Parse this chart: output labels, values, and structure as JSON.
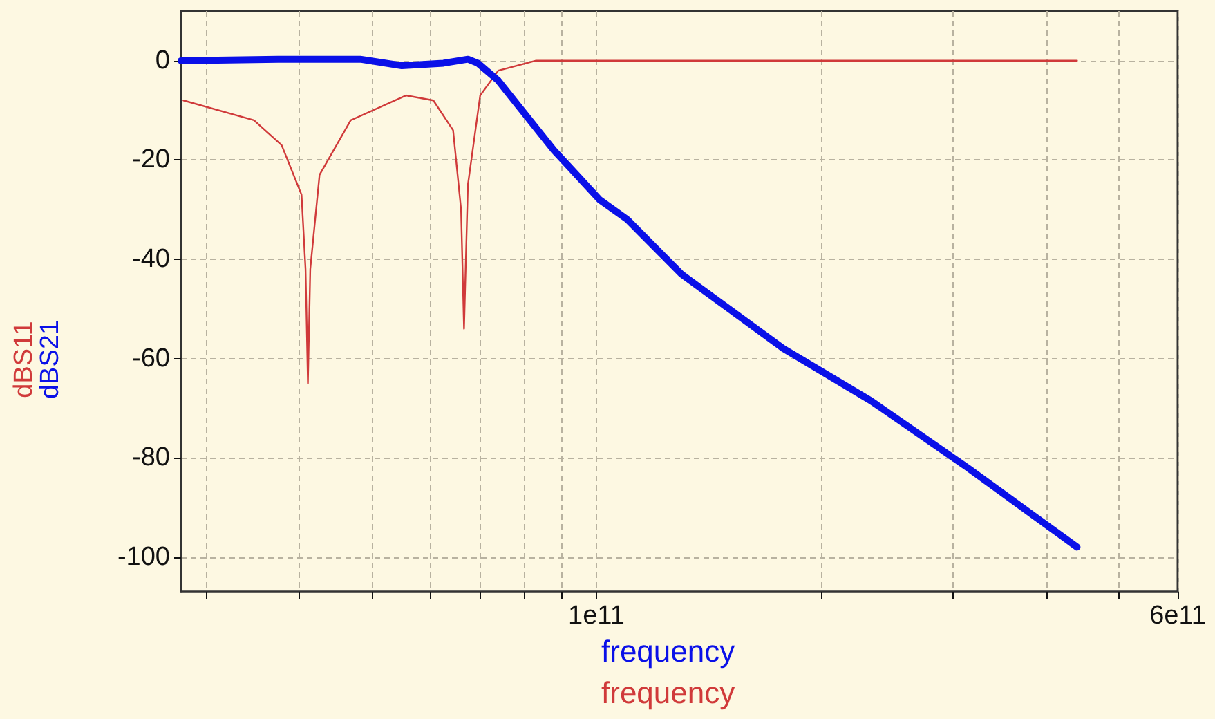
{
  "chart_data": {
    "type": "line",
    "xlabel": "frequency",
    "log": "x",
    "grid": true,
    "marker": "none",
    "line_style": "solid",
    "xlim": [
      27800000000.0,
      600000000000.0
    ],
    "xticks": [
      {
        "value": 30000000000.0,
        "label": null
      },
      {
        "value": 40000000000.0,
        "label": null
      },
      {
        "value": 50000000000.0,
        "label": null
      },
      {
        "value": 60000000000.0,
        "label": null
      },
      {
        "value": 70000000000.0,
        "label": null
      },
      {
        "value": 80000000000.0,
        "label": null
      },
      {
        "value": 90000000000.0,
        "label": null
      },
      {
        "value": 100000000000.0,
        "label": "1e11"
      },
      {
        "value": 200000000000.0,
        "label": null
      },
      {
        "value": 300000000000.0,
        "label": null
      },
      {
        "value": 400000000000.0,
        "label": null
      },
      {
        "value": 500000000000.0,
        "label": null
      },
      {
        "value": 600000000000.0,
        "label": "6e11"
      }
    ],
    "ylim": [
      -107,
      10
    ],
    "yticks": [
      -100,
      -80,
      -60,
      -40,
      -20,
      0
    ],
    "series": [
      {
        "name": "dBS11",
        "color": "#d03a3a",
        "x": [
          28000000000.0,
          34800000000.0,
          37900000000.0,
          40300000000.0,
          40800000000.0,
          41100000000.0,
          41400000000.0,
          42600000000.0,
          46900000000.0,
          55600000000.0,
          60500000000.0,
          64300000000.0,
          65900000000.0,
          66500000000.0,
          67300000000.0,
          69900000000.0,
          73900000000.0,
          82900000000.0,
          440000000000.0
        ],
        "values": [
          -8,
          -12,
          -17,
          -27,
          -42,
          -65,
          -42,
          -23,
          -12,
          -7,
          -8,
          -14,
          -30,
          -54,
          -25,
          -7,
          -2,
          0,
          0
        ]
      },
      {
        "name": "dBS21",
        "color": "#0a10e8",
        "x": [
          27800000000.0,
          37500000000.0,
          48300000000.0,
          54900000000.0,
          62400000000.0,
          67300000000.0,
          69400000000.0,
          73900000000.0,
          80500000000.0,
          87700000000.0,
          101000000000.0,
          110000000000.0,
          130000000000.0,
          178000000000.0,
          233000000000.0,
          314000000000.0,
          440000000000.0
        ],
        "values": [
          0,
          0.3,
          0.3,
          -1,
          -0.5,
          0.3,
          -0.5,
          -4,
          -11,
          -18,
          -28,
          -32,
          -43,
          -58,
          -68.5,
          -82,
          -98
        ]
      }
    ]
  }
}
